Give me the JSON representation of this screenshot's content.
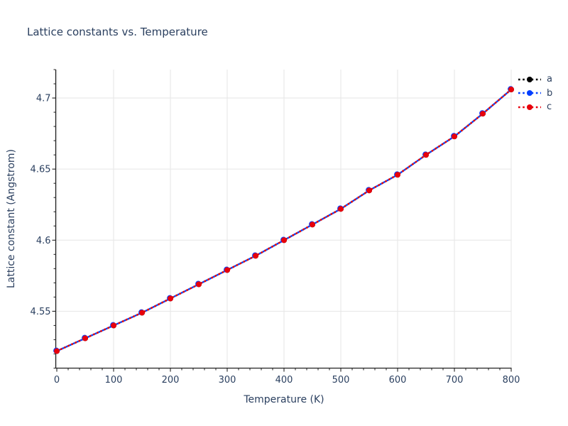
{
  "figure": {
    "title": "Lattice constants vs. Temperature"
  },
  "chart_data": {
    "type": "line",
    "title": "Lattice constants vs. Temperature",
    "xlabel": "Temperature (K)",
    "ylabel": "Lattice constant (Angstrom)",
    "x": [
      0,
      50,
      100,
      150,
      200,
      250,
      300,
      350,
      400,
      450,
      500,
      550,
      600,
      650,
      700,
      750,
      800
    ],
    "series": [
      {
        "name": "a",
        "color": "#000000",
        "line_style": "dotted",
        "marker": "circle",
        "values": [
          4.522,
          4.531,
          4.54,
          4.549,
          4.559,
          4.569,
          4.579,
          4.589,
          4.6,
          4.611,
          4.622,
          4.635,
          4.646,
          4.66,
          4.673,
          4.689,
          4.706
        ]
      },
      {
        "name": "b",
        "color": "#023eff",
        "line_style": "dotted",
        "marker": "circle",
        "values": [
          4.522,
          4.531,
          4.54,
          4.549,
          4.559,
          4.569,
          4.579,
          4.589,
          4.6,
          4.611,
          4.622,
          4.635,
          4.646,
          4.66,
          4.673,
          4.689,
          4.706
        ]
      },
      {
        "name": "c",
        "color": "#e8000b",
        "line_style": "dotted",
        "marker": "circle",
        "values": [
          4.522,
          4.531,
          4.54,
          4.549,
          4.559,
          4.569,
          4.579,
          4.589,
          4.6,
          4.611,
          4.622,
          4.635,
          4.646,
          4.66,
          4.673,
          4.689,
          4.706
        ]
      }
    ],
    "xlim": [
      0,
      800
    ],
    "ylim": [
      4.51,
      4.72
    ],
    "x_ticks": {
      "values": [
        0,
        100,
        200,
        300,
        400,
        500,
        600,
        700,
        800
      ],
      "labels": [
        "0",
        "100",
        "200",
        "300",
        "400",
        "500",
        "600",
        "700",
        "800"
      ],
      "minor_step": 20
    },
    "y_ticks": {
      "values": [
        4.55,
        4.6,
        4.65,
        4.7
      ],
      "labels": [
        "4.55",
        "4.6",
        "4.65",
        "4.7"
      ],
      "minor_step": 0.01
    },
    "grid": true,
    "legend_position": "top-right",
    "legend_entries": [
      "a",
      "b",
      "c"
    ]
  },
  "style": {
    "text_color": "#2a3f5f",
    "grid_color": "#e6e6e6",
    "axis_color": "#222222",
    "background": "#ffffff"
  }
}
